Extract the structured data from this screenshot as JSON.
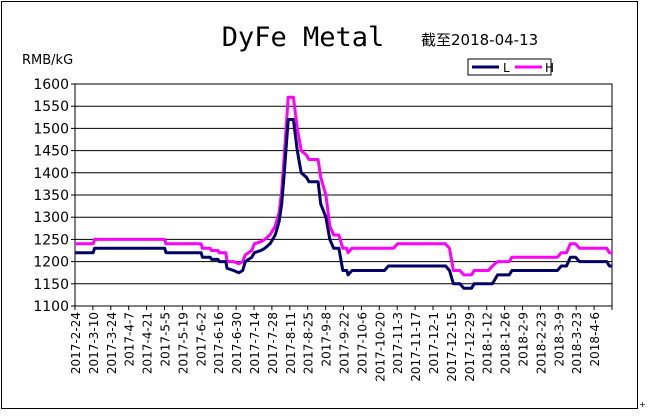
{
  "chart_data": {
    "type": "line",
    "title": "DyFe Metal",
    "subtitle": "截至2018-04-13",
    "ylabel": "RMB/kG",
    "xlabel": "",
    "ylim": [
      1100,
      1600
    ],
    "yticks": [
      1100,
      1150,
      1200,
      1250,
      1300,
      1350,
      1400,
      1450,
      1500,
      1550,
      1600
    ],
    "grid": "horizontal",
    "legend_position": "top-right",
    "x_tick_labels": [
      "2017-2-24",
      "2017-3-10",
      "2017-3-24",
      "2017-4-7",
      "2017-4-21",
      "2017-5-5",
      "2017-5-19",
      "2017-6-2",
      "2017-6-16",
      "2017-6-30",
      "2017-7-14",
      "2017-7-28",
      "2017-8-11",
      "2017-8-25",
      "2017-9-8",
      "2017-9-22",
      "2017-10-6",
      "2017-10-20",
      "2017-11-3",
      "2017-11-17",
      "2017-12-1",
      "2017-12-15",
      "2017-12-29",
      "2018-1-12",
      "2018-1-26",
      "2018-2-9",
      "2018-2-23",
      "2018-3-9",
      "2018-3-23",
      "2018-4-6"
    ],
    "start_date": "2017-02-24",
    "end_date": "2018-04-13",
    "series": [
      {
        "name": "L",
        "color": "#000066",
        "points": [
          [
            "2017-02-24",
            1220
          ],
          [
            "2017-03-10",
            1220
          ],
          [
            "2017-03-11",
            1230
          ],
          [
            "2017-05-04",
            1230
          ],
          [
            "2017-05-05",
            1220
          ],
          [
            "2017-06-01",
            1220
          ],
          [
            "2017-06-02",
            1210
          ],
          [
            "2017-06-08",
            1210
          ],
          [
            "2017-06-09",
            1205
          ],
          [
            "2017-06-14",
            1205
          ],
          [
            "2017-06-15",
            1200
          ],
          [
            "2017-06-20",
            1200
          ],
          [
            "2017-06-21",
            1185
          ],
          [
            "2017-06-26",
            1180
          ],
          [
            "2017-06-30",
            1175
          ],
          [
            "2017-07-03",
            1180
          ],
          [
            "2017-07-05",
            1200
          ],
          [
            "2017-07-10",
            1210
          ],
          [
            "2017-07-12",
            1220
          ],
          [
            "2017-07-17",
            1225
          ],
          [
            "2017-07-20",
            1230
          ],
          [
            "2017-07-24",
            1240
          ],
          [
            "2017-07-28",
            1260
          ],
          [
            "2017-07-31",
            1290
          ],
          [
            "2017-08-02",
            1330
          ],
          [
            "2017-08-04",
            1400
          ],
          [
            "2017-08-07",
            1520
          ],
          [
            "2017-08-11",
            1520
          ],
          [
            "2017-08-14",
            1450
          ],
          [
            "2017-08-17",
            1400
          ],
          [
            "2017-08-21",
            1390
          ],
          [
            "2017-08-23",
            1380
          ],
          [
            "2017-08-30",
            1380
          ],
          [
            "2017-09-01",
            1330
          ],
          [
            "2017-09-05",
            1300
          ],
          [
            "2017-09-08",
            1250
          ],
          [
            "2017-09-11",
            1230
          ],
          [
            "2017-09-15",
            1230
          ],
          [
            "2017-09-18",
            1180
          ],
          [
            "2017-09-21",
            1180
          ],
          [
            "2017-09-22",
            1170
          ],
          [
            "2017-09-25",
            1180
          ],
          [
            "2017-10-20",
            1180
          ],
          [
            "2017-10-23",
            1190
          ],
          [
            "2017-12-06",
            1190
          ],
          [
            "2017-12-09",
            1180
          ],
          [
            "2017-12-12",
            1150
          ],
          [
            "2017-12-17",
            1150
          ],
          [
            "2017-12-20",
            1140
          ],
          [
            "2017-12-26",
            1140
          ],
          [
            "2017-12-28",
            1150
          ],
          [
            "2018-01-11",
            1150
          ],
          [
            "2018-01-15",
            1170
          ],
          [
            "2018-01-24",
            1170
          ],
          [
            "2018-01-26",
            1180
          ],
          [
            "2018-03-02",
            1180
          ],
          [
            "2018-03-05",
            1190
          ],
          [
            "2018-03-09",
            1190
          ],
          [
            "2018-03-12",
            1210
          ],
          [
            "2018-03-16",
            1210
          ],
          [
            "2018-03-19",
            1200
          ],
          [
            "2018-04-09",
            1200
          ],
          [
            "2018-04-11",
            1190
          ],
          [
            "2018-04-13",
            1190
          ]
        ]
      },
      {
        "name": "H",
        "color": "#ff00ff",
        "points": [
          [
            "2017-02-24",
            1240
          ],
          [
            "2017-03-10",
            1240
          ],
          [
            "2017-03-11",
            1250
          ],
          [
            "2017-05-04",
            1250
          ],
          [
            "2017-05-05",
            1240
          ],
          [
            "2017-06-01",
            1240
          ],
          [
            "2017-06-02",
            1230
          ],
          [
            "2017-06-08",
            1230
          ],
          [
            "2017-06-09",
            1225
          ],
          [
            "2017-06-14",
            1225
          ],
          [
            "2017-06-15",
            1220
          ],
          [
            "2017-06-20",
            1220
          ],
          [
            "2017-06-21",
            1200
          ],
          [
            "2017-06-26",
            1200
          ],
          [
            "2017-06-30",
            1195
          ],
          [
            "2017-07-03",
            1200
          ],
          [
            "2017-07-05",
            1215
          ],
          [
            "2017-07-10",
            1225
          ],
          [
            "2017-07-12",
            1240
          ],
          [
            "2017-07-17",
            1245
          ],
          [
            "2017-07-20",
            1250
          ],
          [
            "2017-07-24",
            1260
          ],
          [
            "2017-07-28",
            1280
          ],
          [
            "2017-07-31",
            1310
          ],
          [
            "2017-08-02",
            1360
          ],
          [
            "2017-08-04",
            1440
          ],
          [
            "2017-08-07",
            1570
          ],
          [
            "2017-08-11",
            1570
          ],
          [
            "2017-08-14",
            1500
          ],
          [
            "2017-08-17",
            1450
          ],
          [
            "2017-08-21",
            1440
          ],
          [
            "2017-08-23",
            1430
          ],
          [
            "2017-08-30",
            1430
          ],
          [
            "2017-09-01",
            1390
          ],
          [
            "2017-09-05",
            1350
          ],
          [
            "2017-09-08",
            1280
          ],
          [
            "2017-09-11",
            1260
          ],
          [
            "2017-09-15",
            1260
          ],
          [
            "2017-09-18",
            1230
          ],
          [
            "2017-09-21",
            1230
          ],
          [
            "2017-09-22",
            1220
          ],
          [
            "2017-09-25",
            1230
          ],
          [
            "2017-10-27",
            1230
          ],
          [
            "2017-10-30",
            1240
          ],
          [
            "2017-12-06",
            1240
          ],
          [
            "2017-12-09",
            1230
          ],
          [
            "2017-12-12",
            1180
          ],
          [
            "2017-12-17",
            1180
          ],
          [
            "2017-12-20",
            1170
          ],
          [
            "2017-12-26",
            1170
          ],
          [
            "2017-12-28",
            1180
          ],
          [
            "2018-01-08",
            1180
          ],
          [
            "2018-01-11",
            1190
          ],
          [
            "2018-01-15",
            1200
          ],
          [
            "2018-01-24",
            1200
          ],
          [
            "2018-01-26",
            1210
          ],
          [
            "2018-03-02",
            1210
          ],
          [
            "2018-03-05",
            1220
          ],
          [
            "2018-03-09",
            1220
          ],
          [
            "2018-03-12",
            1240
          ],
          [
            "2018-03-16",
            1240
          ],
          [
            "2018-03-19",
            1230
          ],
          [
            "2018-04-09",
            1230
          ],
          [
            "2018-04-11",
            1220
          ],
          [
            "2018-04-13",
            1220
          ]
        ]
      }
    ]
  }
}
